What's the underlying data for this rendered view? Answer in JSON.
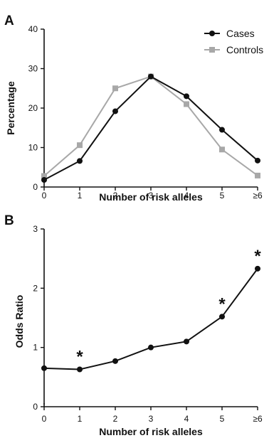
{
  "chart_data": [
    {
      "panel_label": "A",
      "type": "line",
      "categories": [
        "0",
        "1",
        "2",
        "3",
        "4",
        "5",
        "≥6"
      ],
      "xlabel": "Number of risk alleles",
      "ylabel": "Percentage",
      "ylim": [
        0,
        40
      ],
      "yticks": [
        "0",
        "10",
        "20",
        "30",
        "40"
      ],
      "legend_placement": "top-right",
      "series": [
        {
          "name": "Cases",
          "marker": "circle",
          "color": "#111111",
          "values": [
            1.8,
            6.6,
            19.2,
            28.0,
            23.0,
            14.5,
            6.7
          ]
        },
        {
          "name": "Controls",
          "marker": "square",
          "color": "#a8a8a8",
          "values": [
            2.8,
            10.6,
            25.0,
            28.0,
            21.0,
            9.5,
            2.9
          ]
        }
      ]
    },
    {
      "panel_label": "B",
      "type": "line",
      "categories": [
        "0",
        "1",
        "2",
        "3",
        "4",
        "5",
        "≥6"
      ],
      "xlabel": "Number of risk alleles",
      "ylabel": "Odds Ratio",
      "ylim": [
        0,
        3
      ],
      "yticks": [
        "0",
        "1",
        "2",
        "3"
      ],
      "series": [
        {
          "name": "",
          "marker": "circle",
          "color": "#111111",
          "values": [
            0.65,
            0.63,
            0.77,
            1.0,
            1.1,
            1.52,
            2.33
          ]
        }
      ],
      "annotations": [
        {
          "category": "1",
          "text": "*"
        },
        {
          "category": "5",
          "text": "*"
        },
        {
          "category": "≥6",
          "text": "*"
        }
      ]
    }
  ]
}
